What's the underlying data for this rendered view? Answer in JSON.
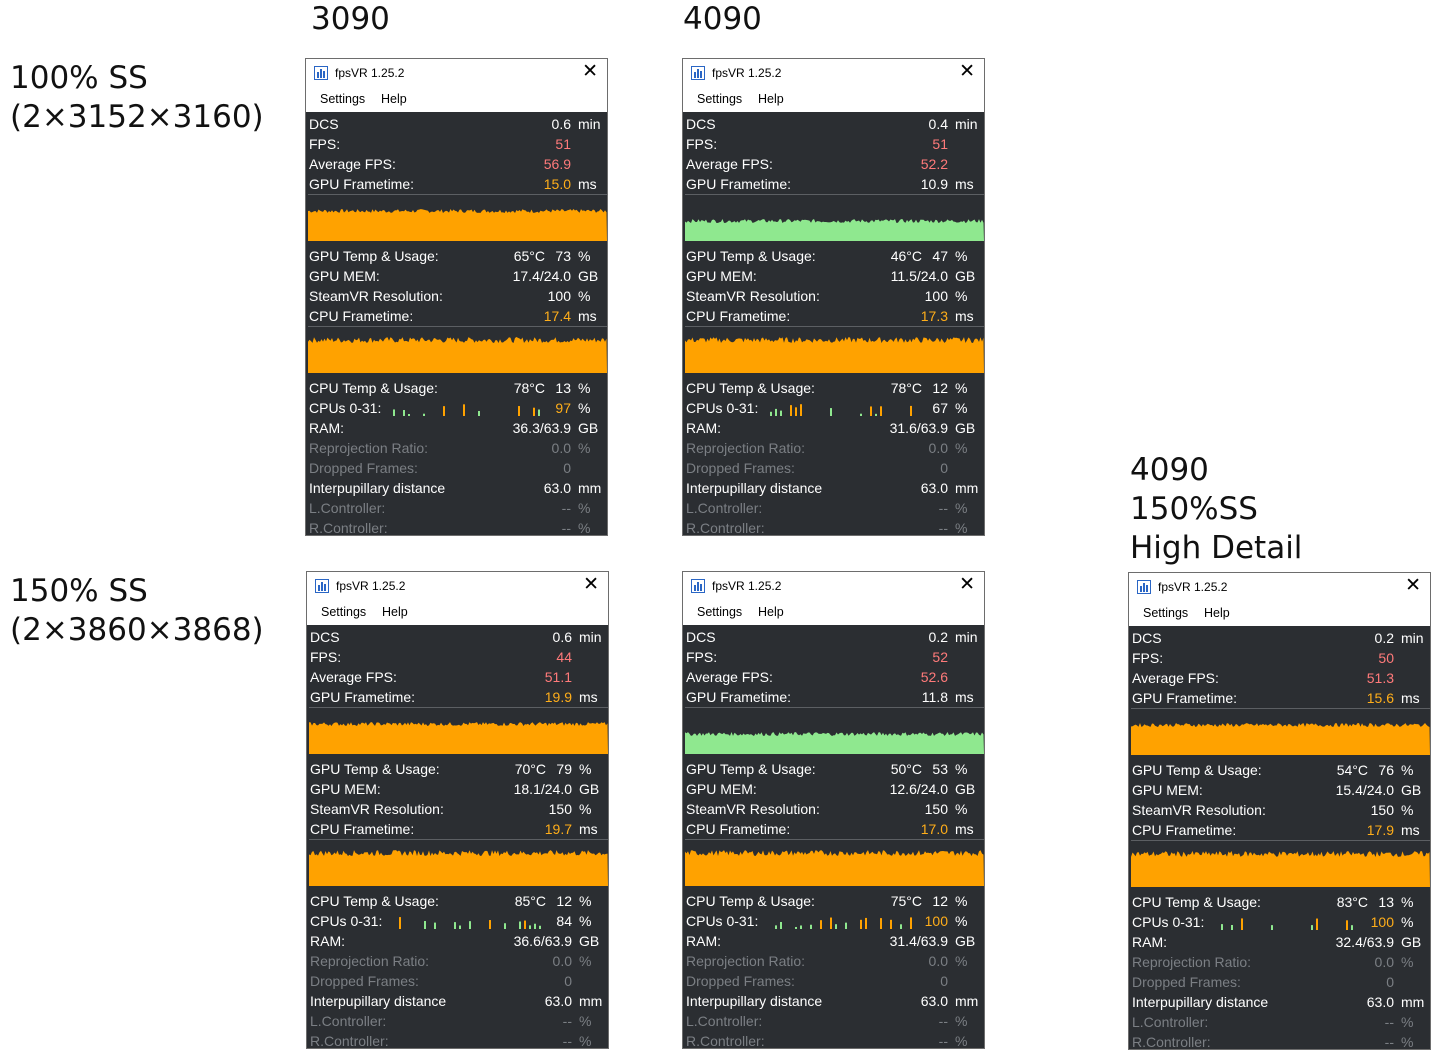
{
  "labels": {
    "col_3090": "3090",
    "col_4090": "4090",
    "row_100": "100% SS\n(2×3152×3160)",
    "row_150": "150% SS\n(2×3860×3868)",
    "extra": "4090\n150%SS\nHigh Detail"
  },
  "common": {
    "app_title": "fpsVR 1.25.2",
    "menu_settings": "Settings",
    "menu_help": "Help",
    "close_glyph": "✕",
    "k_dcs": "DCS",
    "k_fps": "FPS:",
    "k_avg": "Average FPS:",
    "k_gpuft": "GPU Frametime:",
    "k_gputemp": "GPU Temp & Usage:",
    "k_gpumem": "GPU MEM:",
    "k_res": "SteamVR Resolution:",
    "k_cpuft": "CPU Frametime:",
    "k_cputemp": "CPU Temp & Usage:",
    "k_cpus": "CPUs 0-31:",
    "k_ram": "RAM:",
    "k_reproj": "Reprojection Ratio:",
    "k_dropped": "Dropped Frames:",
    "k_ipd": "Interpupillary distance",
    "k_lctrl": "L.Controller:",
    "k_rctrl": "R.Controller:",
    "u_min": "min",
    "u_ms": "ms",
    "u_pct": "%",
    "u_gb": "GB",
    "u_mm": "mm",
    "reproj_val": "0.0",
    "dropped_val": "0",
    "ipd_val": "63.0",
    "ctrl_val": "--"
  },
  "panels": [
    {
      "dcs": "0.6",
      "fps": "51",
      "avg_fps": "56.9",
      "gpu_ft": "15.0",
      "gpu_ft_color": "o",
      "gpu_temp": "65°C",
      "gpu_usage": "73",
      "gpu_mem": "17.4/24.0",
      "res": "100",
      "cpu_ft": "17.4",
      "cpu_ft_color": "o",
      "cpu_temp": "78°C",
      "cpu_usage": "13",
      "cpus": "97",
      "cpus_color": "o",
      "ram": "36.3/63.9",
      "gpu_graph_color": "#ffa200"
    },
    {
      "dcs": "0.4",
      "fps": "51",
      "avg_fps": "52.2",
      "gpu_ft": "10.9",
      "gpu_ft_color": "w",
      "gpu_temp": "46°C",
      "gpu_usage": "47",
      "gpu_mem": "11.5/24.0",
      "res": "100",
      "cpu_ft": "17.3",
      "cpu_ft_color": "o",
      "cpu_temp": "78°C",
      "cpu_usage": "12",
      "cpus": "67",
      "cpus_color": "w",
      "ram": "31.6/63.9",
      "gpu_graph_color": "#8fe88f"
    },
    {
      "dcs": "0.6",
      "fps": "44",
      "avg_fps": "51.1",
      "gpu_ft": "19.9",
      "gpu_ft_color": "o",
      "gpu_temp": "70°C",
      "gpu_usage": "79",
      "gpu_mem": "18.1/24.0",
      "res": "150",
      "cpu_ft": "19.7",
      "cpu_ft_color": "o",
      "cpu_temp": "85°C",
      "cpu_usage": "12",
      "cpus": "84",
      "cpus_color": "w",
      "ram": "36.6/63.9",
      "gpu_graph_color": "#ffa200"
    },
    {
      "dcs": "0.2",
      "fps": "52",
      "avg_fps": "52.6",
      "gpu_ft": "11.8",
      "gpu_ft_color": "w",
      "gpu_temp": "50°C",
      "gpu_usage": "53",
      "gpu_mem": "12.6/24.0",
      "res": "150",
      "cpu_ft": "17.0",
      "cpu_ft_color": "o",
      "cpu_temp": "75°C",
      "cpu_usage": "12",
      "cpus": "100",
      "cpus_color": "o",
      "ram": "31.4/63.9",
      "gpu_graph_color": "#8fe88f"
    },
    {
      "dcs": "0.2",
      "fps": "50",
      "avg_fps": "51.3",
      "gpu_ft": "15.6",
      "gpu_ft_color": "o",
      "gpu_temp": "54°C",
      "gpu_usage": "76",
      "gpu_mem": "15.4/24.0",
      "res": "150",
      "cpu_ft": "17.9",
      "cpu_ft_color": "o",
      "cpu_temp": "83°C",
      "cpu_usage": "13",
      "cpus": "100",
      "cpus_color": "o",
      "ram": "32.4/63.9",
      "gpu_graph_color": "#ffa200"
    }
  ]
}
